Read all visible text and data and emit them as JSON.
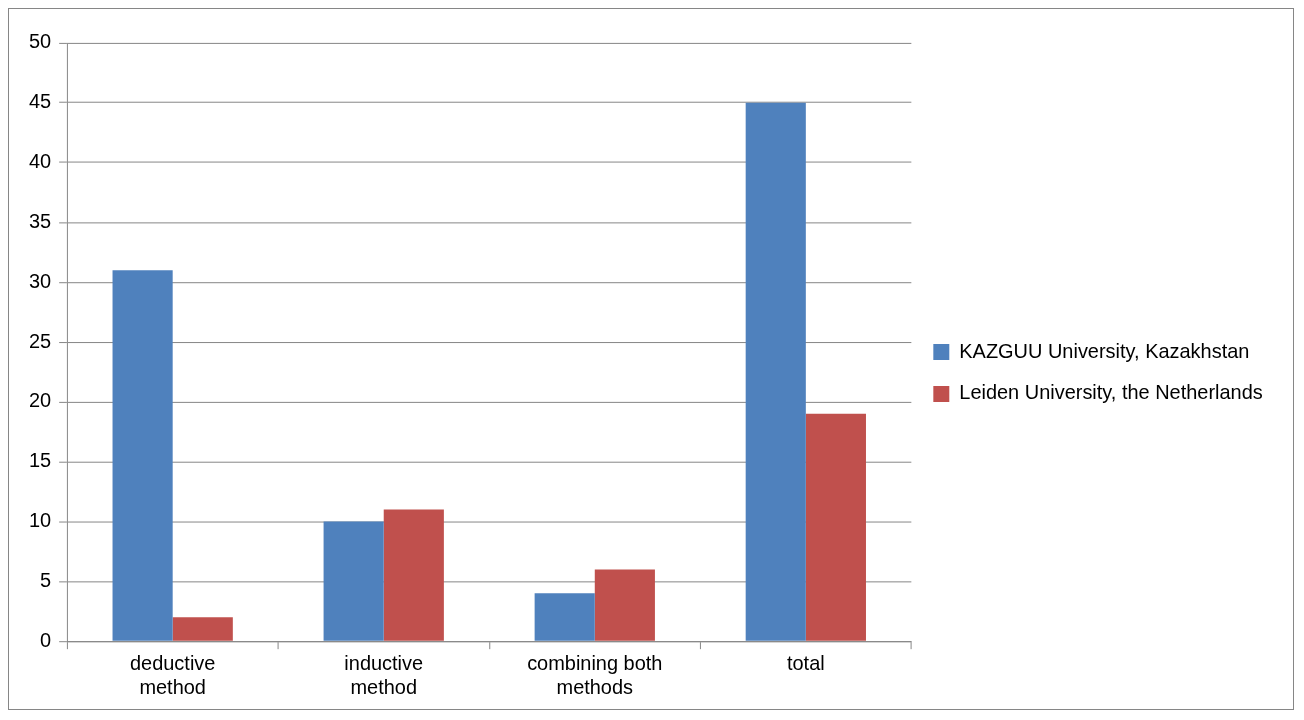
{
  "chart_data": {
    "type": "bar",
    "categories": [
      "deductive method",
      "inductive method",
      "combining both methods",
      "total"
    ],
    "series": [
      {
        "name": "KAZGUU University, Kazakhstan",
        "color": "#4f81bd",
        "values": [
          31,
          10,
          4,
          45
        ]
      },
      {
        "name": "Leiden University, the Netherlands",
        "color": "#c0504d",
        "values": [
          2,
          11,
          6,
          19
        ]
      }
    ],
    "ylim": [
      0,
      50
    ],
    "yticks": [
      0,
      5,
      10,
      15,
      20,
      25,
      30,
      35,
      40,
      45,
      50
    ],
    "grid": "y",
    "legend": "right"
  }
}
